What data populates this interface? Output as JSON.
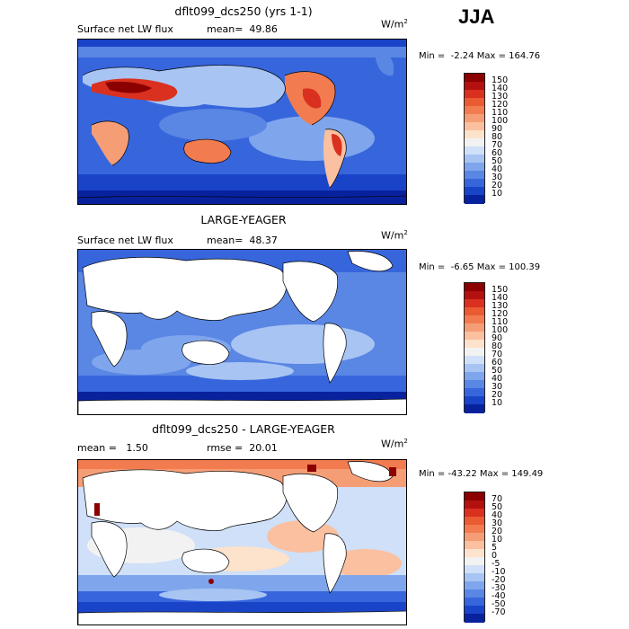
{
  "season": "JJA",
  "units_base": "W/m",
  "units_exp": "2",
  "panels": [
    {
      "title": "dflt099_dcs250 (yrs 1-1)",
      "subtitle_left": "Surface net LW flux",
      "subtitle_right": "mean=  49.86",
      "minmax": "Min =  -2.24 Max = 164.76",
      "colorbar": {
        "labels": [
          "150",
          "140",
          "130",
          "120",
          "110",
          "100",
          "90",
          "80",
          "70",
          "60",
          "50",
          "40",
          "30",
          "20",
          "10"
        ],
        "colors": [
          "#8b0000",
          "#b31010",
          "#d9301f",
          "#ea5a33",
          "#f27c4f",
          "#f59e76",
          "#fac0a0",
          "#fde2cc",
          "#f2f2f2",
          "#cfe0f8",
          "#a8c4f2",
          "#7fa6ec",
          "#5a86e4",
          "#3766dc",
          "#1a44c8",
          "#08229e"
        ]
      }
    },
    {
      "title": "LARGE-YEAGER",
      "subtitle_left": "Surface net LW flux",
      "subtitle_right": "mean=  48.37",
      "minmax": "Min =  -6.65 Max = 100.39",
      "colorbar": {
        "labels": [
          "150",
          "140",
          "130",
          "120",
          "110",
          "100",
          "90",
          "80",
          "70",
          "60",
          "50",
          "40",
          "30",
          "20",
          "10"
        ],
        "colors": [
          "#8b0000",
          "#b31010",
          "#d9301f",
          "#ea5a33",
          "#f27c4f",
          "#f59e76",
          "#fac0a0",
          "#fde2cc",
          "#f2f2f2",
          "#cfe0f8",
          "#a8c4f2",
          "#7fa6ec",
          "#5a86e4",
          "#3766dc",
          "#1a44c8",
          "#08229e"
        ]
      }
    },
    {
      "title": "dflt099_dcs250 - LARGE-YEAGER",
      "subtitle_left": "mean =   1.50",
      "subtitle_right": "rmse =  20.01",
      "minmax": "Min = -43.22 Max = 149.49",
      "colorbar": {
        "labels": [
          "70",
          "50",
          "40",
          "30",
          "20",
          "10",
          "5",
          "0",
          "-5",
          "-10",
          "-20",
          "-30",
          "-40",
          "-50",
          "-70"
        ],
        "colors": [
          "#8b0000",
          "#b31010",
          "#d9301f",
          "#ea5a33",
          "#f27c4f",
          "#f59e76",
          "#fac0a0",
          "#fde2cc",
          "#f2f2f2",
          "#cfe0f8",
          "#a8c4f2",
          "#7fa6ec",
          "#5a86e4",
          "#3766dc",
          "#1a44c8",
          "#08229e"
        ]
      }
    }
  ]
}
